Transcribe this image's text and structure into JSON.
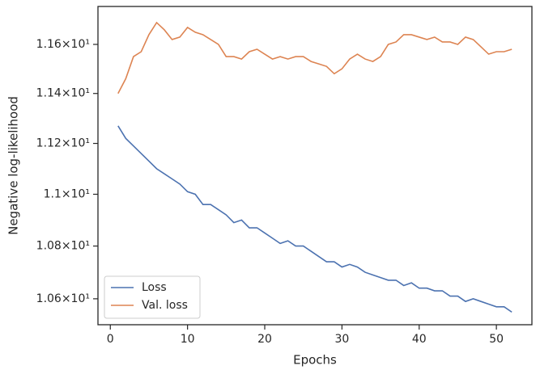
{
  "chart_data": {
    "type": "line",
    "x_label": "Epochs",
    "y_label": "Negative log-likelihood",
    "x": [
      1,
      2,
      3,
      4,
      5,
      6,
      7,
      8,
      9,
      10,
      11,
      12,
      13,
      14,
      15,
      16,
      17,
      18,
      19,
      20,
      21,
      22,
      23,
      24,
      25,
      26,
      27,
      28,
      29,
      30,
      31,
      32,
      33,
      34,
      35,
      36,
      37,
      38,
      39,
      40,
      41,
      42,
      43,
      44,
      45,
      46,
      47,
      48,
      49,
      50,
      51,
      52
    ],
    "series": [
      {
        "name": "Loss",
        "color": "#4c72b0",
        "values": [
          11.27,
          11.22,
          11.19,
          11.16,
          11.13,
          11.1,
          11.08,
          11.06,
          11.04,
          11.01,
          11.0,
          10.96,
          10.96,
          10.94,
          10.92,
          10.89,
          10.9,
          10.87,
          10.87,
          10.85,
          10.83,
          10.81,
          10.82,
          10.8,
          10.8,
          10.78,
          10.76,
          10.74,
          10.74,
          10.72,
          10.73,
          10.72,
          10.7,
          10.69,
          10.68,
          10.67,
          10.67,
          10.65,
          10.66,
          10.64,
          10.64,
          10.63,
          10.63,
          10.61,
          10.61,
          10.59,
          10.6,
          10.59,
          10.58,
          10.57,
          10.57,
          10.55
        ]
      },
      {
        "name": "Val. loss",
        "color": "#dd8452",
        "values": [
          11.4,
          11.46,
          11.55,
          11.57,
          11.64,
          11.69,
          11.66,
          11.62,
          11.63,
          11.67,
          11.65,
          11.64,
          11.62,
          11.6,
          11.55,
          11.55,
          11.54,
          11.57,
          11.58,
          11.56,
          11.54,
          11.55,
          11.54,
          11.55,
          11.55,
          11.53,
          11.52,
          11.51,
          11.48,
          11.5,
          11.54,
          11.56,
          11.54,
          11.53,
          11.55,
          11.6,
          11.61,
          11.64,
          11.64,
          11.63,
          11.62,
          11.63,
          11.61,
          11.61,
          11.6,
          11.63,
          11.62,
          11.59,
          11.56,
          11.57,
          11.57,
          11.58
        ]
      }
    ],
    "xlim": [
      -1.6,
      54.6
    ],
    "xticks": [
      0,
      10,
      20,
      30,
      40,
      50
    ],
    "ylim": [
      10.503,
      11.757
    ],
    "yscale": "log",
    "yticks": [
      {
        "value": 10.6,
        "label": "1.06×10¹"
      },
      {
        "value": 10.8,
        "label": "1.08×10¹"
      },
      {
        "value": 11.0,
        "label": "1.1×10¹"
      },
      {
        "value": 11.2,
        "label": "1.12×10¹"
      },
      {
        "value": 11.4,
        "label": "1.14×10¹"
      },
      {
        "value": 11.6,
        "label": "1.16×10¹"
      }
    ],
    "legend": "lower left"
  }
}
